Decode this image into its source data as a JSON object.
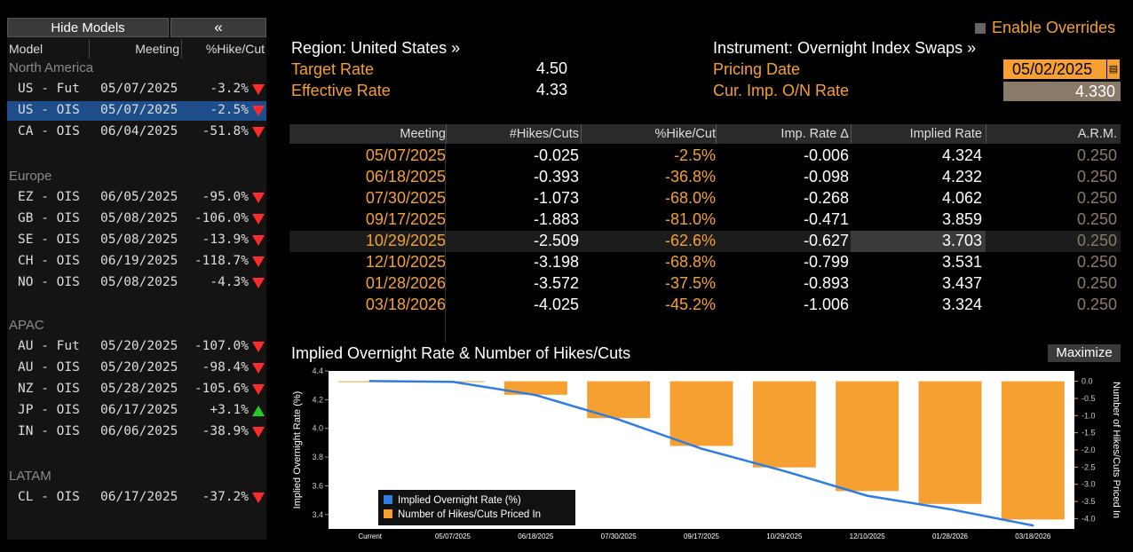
{
  "sidebar": {
    "hide_models_label": "Hide Models",
    "collapse_label": "«",
    "headers": {
      "model": "Model",
      "meeting": "Meeting",
      "pct": "%Hike/Cut"
    },
    "groups": [
      {
        "name": "North America",
        "rows": [
          {
            "model": "US - Fut",
            "meeting": "05/07/2025",
            "pct": "-3.2%",
            "dir": "down"
          },
          {
            "model": "US - OIS",
            "meeting": "05/07/2025",
            "pct": "-2.5%",
            "dir": "down",
            "selected": true
          },
          {
            "model": "CA - OIS",
            "meeting": "06/04/2025",
            "pct": "-51.8%",
            "dir": "down"
          }
        ]
      },
      {
        "name": "Europe",
        "rows": [
          {
            "model": "EZ - OIS",
            "meeting": "06/05/2025",
            "pct": "-95.0%",
            "dir": "down"
          },
          {
            "model": "GB - OIS",
            "meeting": "05/08/2025",
            "pct": "-106.0%",
            "dir": "down"
          },
          {
            "model": "SE - OIS",
            "meeting": "05/08/2025",
            "pct": "-13.9%",
            "dir": "down"
          },
          {
            "model": "CH - OIS",
            "meeting": "06/19/2025",
            "pct": "-118.7%",
            "dir": "down"
          },
          {
            "model": "NO - OIS",
            "meeting": "05/08/2025",
            "pct": "-4.3%",
            "dir": "down"
          }
        ]
      },
      {
        "name": "APAC",
        "rows": [
          {
            "model": "AU - Fut",
            "meeting": "05/20/2025",
            "pct": "-107.0%",
            "dir": "down"
          },
          {
            "model": "AU - OIS",
            "meeting": "05/20/2025",
            "pct": "-98.4%",
            "dir": "down"
          },
          {
            "model": "NZ - OIS",
            "meeting": "05/28/2025",
            "pct": "-105.6%",
            "dir": "down"
          },
          {
            "model": "JP - OIS",
            "meeting": "06/17/2025",
            "pct": "+3.1%",
            "dir": "up"
          },
          {
            "model": "IN - OIS",
            "meeting": "06/06/2025",
            "pct": "-38.9%",
            "dir": "down"
          }
        ]
      },
      {
        "name": "LATAM",
        "rows": [
          {
            "model": "CL - OIS",
            "meeting": "06/17/2025",
            "pct": "-37.2%",
            "dir": "down"
          }
        ]
      }
    ]
  },
  "header": {
    "enable_overrides": "Enable Overrides",
    "region": "Region: United States »",
    "instrument": "Instrument: Overnight Index Swaps »",
    "target_rate_label": "Target Rate",
    "target_rate_value": "4.50",
    "effective_rate_label": "Effective Rate",
    "effective_rate_value": "4.33",
    "pricing_date_label": "Pricing Date",
    "pricing_date_value": "05/02/2025",
    "cur_rate_label": "Cur. Imp. O/N Rate",
    "cur_rate_value": "4.330"
  },
  "table": {
    "headers": [
      "Meeting",
      "#Hikes/Cuts",
      "%Hike/Cut",
      "Imp. Rate Δ",
      "Implied Rate",
      "A.R.M."
    ],
    "rows": [
      [
        "05/07/2025",
        "-0.025",
        "-2.5%",
        "-0.006",
        "4.324",
        "0.250"
      ],
      [
        "06/18/2025",
        "-0.393",
        "-36.8%",
        "-0.098",
        "4.232",
        "0.250"
      ],
      [
        "07/30/2025",
        "-1.073",
        "-68.0%",
        "-0.268",
        "4.062",
        "0.250"
      ],
      [
        "09/17/2025",
        "-1.883",
        "-81.0%",
        "-0.471",
        "3.859",
        "0.250"
      ],
      [
        "10/29/2025",
        "-2.509",
        "-62.6%",
        "-0.627",
        "3.703",
        "0.250"
      ],
      [
        "12/10/2025",
        "-3.198",
        "-68.8%",
        "-0.799",
        "3.531",
        "0.250"
      ],
      [
        "01/28/2026",
        "-3.572",
        "-37.5%",
        "-0.893",
        "3.437",
        "0.250"
      ],
      [
        "03/18/2026",
        "-4.025",
        "-45.2%",
        "-1.006",
        "3.324",
        "0.250"
      ]
    ],
    "highlighted_row": 4
  },
  "chart": {
    "title": "Implied Overnight Rate & Number of Hikes/Cuts",
    "maximize_label": "Maximize",
    "left_axis_label": "Implied Overnight Rate (%)",
    "right_axis_label": "Number of Hikes/Cuts Priced In",
    "legend": [
      "Implied Overnight Rate (%)",
      "Number of Hikes/Cuts Priced In"
    ],
    "colors": {
      "line": "#2f7de1",
      "bars": "#f5a030"
    }
  },
  "chart_data": {
    "type": "bar",
    "categories": [
      "Current",
      "05/07/2025",
      "06/18/2025",
      "07/30/2025",
      "09/17/2025",
      "10/29/2025",
      "12/10/2025",
      "01/28/2026",
      "03/18/2026"
    ],
    "series": [
      {
        "name": "Implied Overnight Rate (%)",
        "type": "line",
        "axis": "left",
        "values": [
          4.33,
          4.324,
          4.232,
          4.062,
          3.859,
          3.703,
          3.531,
          3.437,
          3.324
        ]
      },
      {
        "name": "Number of Hikes/Cuts Priced In",
        "type": "bar",
        "axis": "right",
        "values": [
          0,
          -0.025,
          -0.393,
          -1.073,
          -1.883,
          -2.509,
          -3.198,
          -3.572,
          -4.025
        ]
      }
    ],
    "left_ylim": [
      3.3,
      4.4
    ],
    "left_ticks": [
      "4.4",
      "4.2",
      "4.0",
      "3.8",
      "3.6",
      "3.4"
    ],
    "right_ylim": [
      -4.3,
      0.3
    ],
    "right_ticks": [
      "0.0",
      "-0.5",
      "-1.0",
      "-1.5",
      "-2.0",
      "-2.5",
      "-3.0",
      "-3.5",
      "-4.0"
    ],
    "legend_position": "bottom-left"
  }
}
